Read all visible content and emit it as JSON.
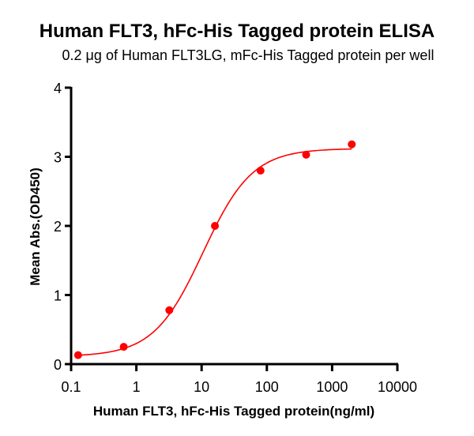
{
  "title": "Human FLT3, hFc-His Tagged protein ELISA",
  "subtitle": "0.2 μg of Human FLT3LG, mFc-His Tagged protein per well",
  "colors": {
    "series": "#ff0000",
    "axis": "#000000"
  },
  "chart_data": {
    "type": "scatter",
    "title": "Human FLT3, hFc-His Tagged protein ELISA",
    "subtitle": "0.2 μg of Human FLT3LG, mFc-His Tagged protein per well",
    "xlabel": "Human FLT3, hFc-His Tagged protein(ng/ml)",
    "ylabel": "Mean Abs.(OD450)",
    "xscale": "log",
    "xlim": [
      0.1,
      10000
    ],
    "ylim": [
      0,
      4
    ],
    "xticks": [
      "0.1",
      "1",
      "10",
      "100",
      "1000",
      "10000"
    ],
    "yticks": [
      "0",
      "1",
      "2",
      "3",
      "4"
    ],
    "grid": false,
    "legend": null,
    "series": [
      {
        "name": "Human FLT3, hFc-His Tagged protein",
        "color": "#ff0000",
        "x": [
          0.128,
          0.64,
          3.2,
          16,
          80,
          400,
          2000
        ],
        "y": [
          0.13,
          0.25,
          0.78,
          2.0,
          2.8,
          3.03,
          3.18
        ],
        "fit": "4PL sigmoidal curve"
      }
    ]
  }
}
